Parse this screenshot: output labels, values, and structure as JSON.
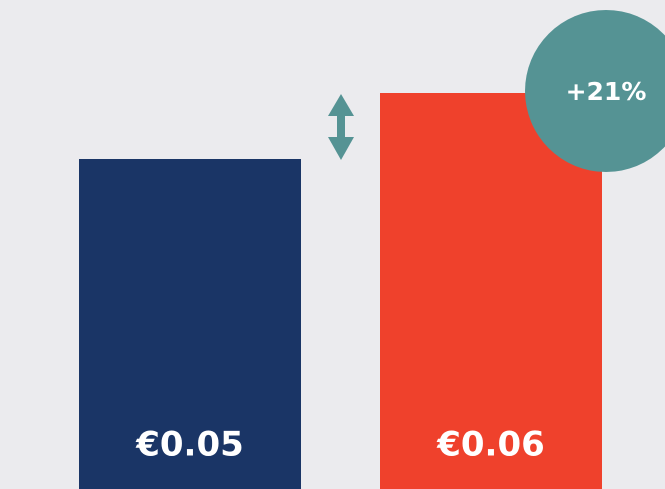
{
  "chart_data": {
    "type": "bar",
    "categories": [
      null,
      null
    ],
    "values": [
      0.05,
      0.06
    ],
    "value_labels": [
      "€0.05",
      "€0.06"
    ],
    "colors": [
      "#1a3566",
      "#ef412c"
    ],
    "annotation": "+21%",
    "annotation_color": "#559394"
  }
}
